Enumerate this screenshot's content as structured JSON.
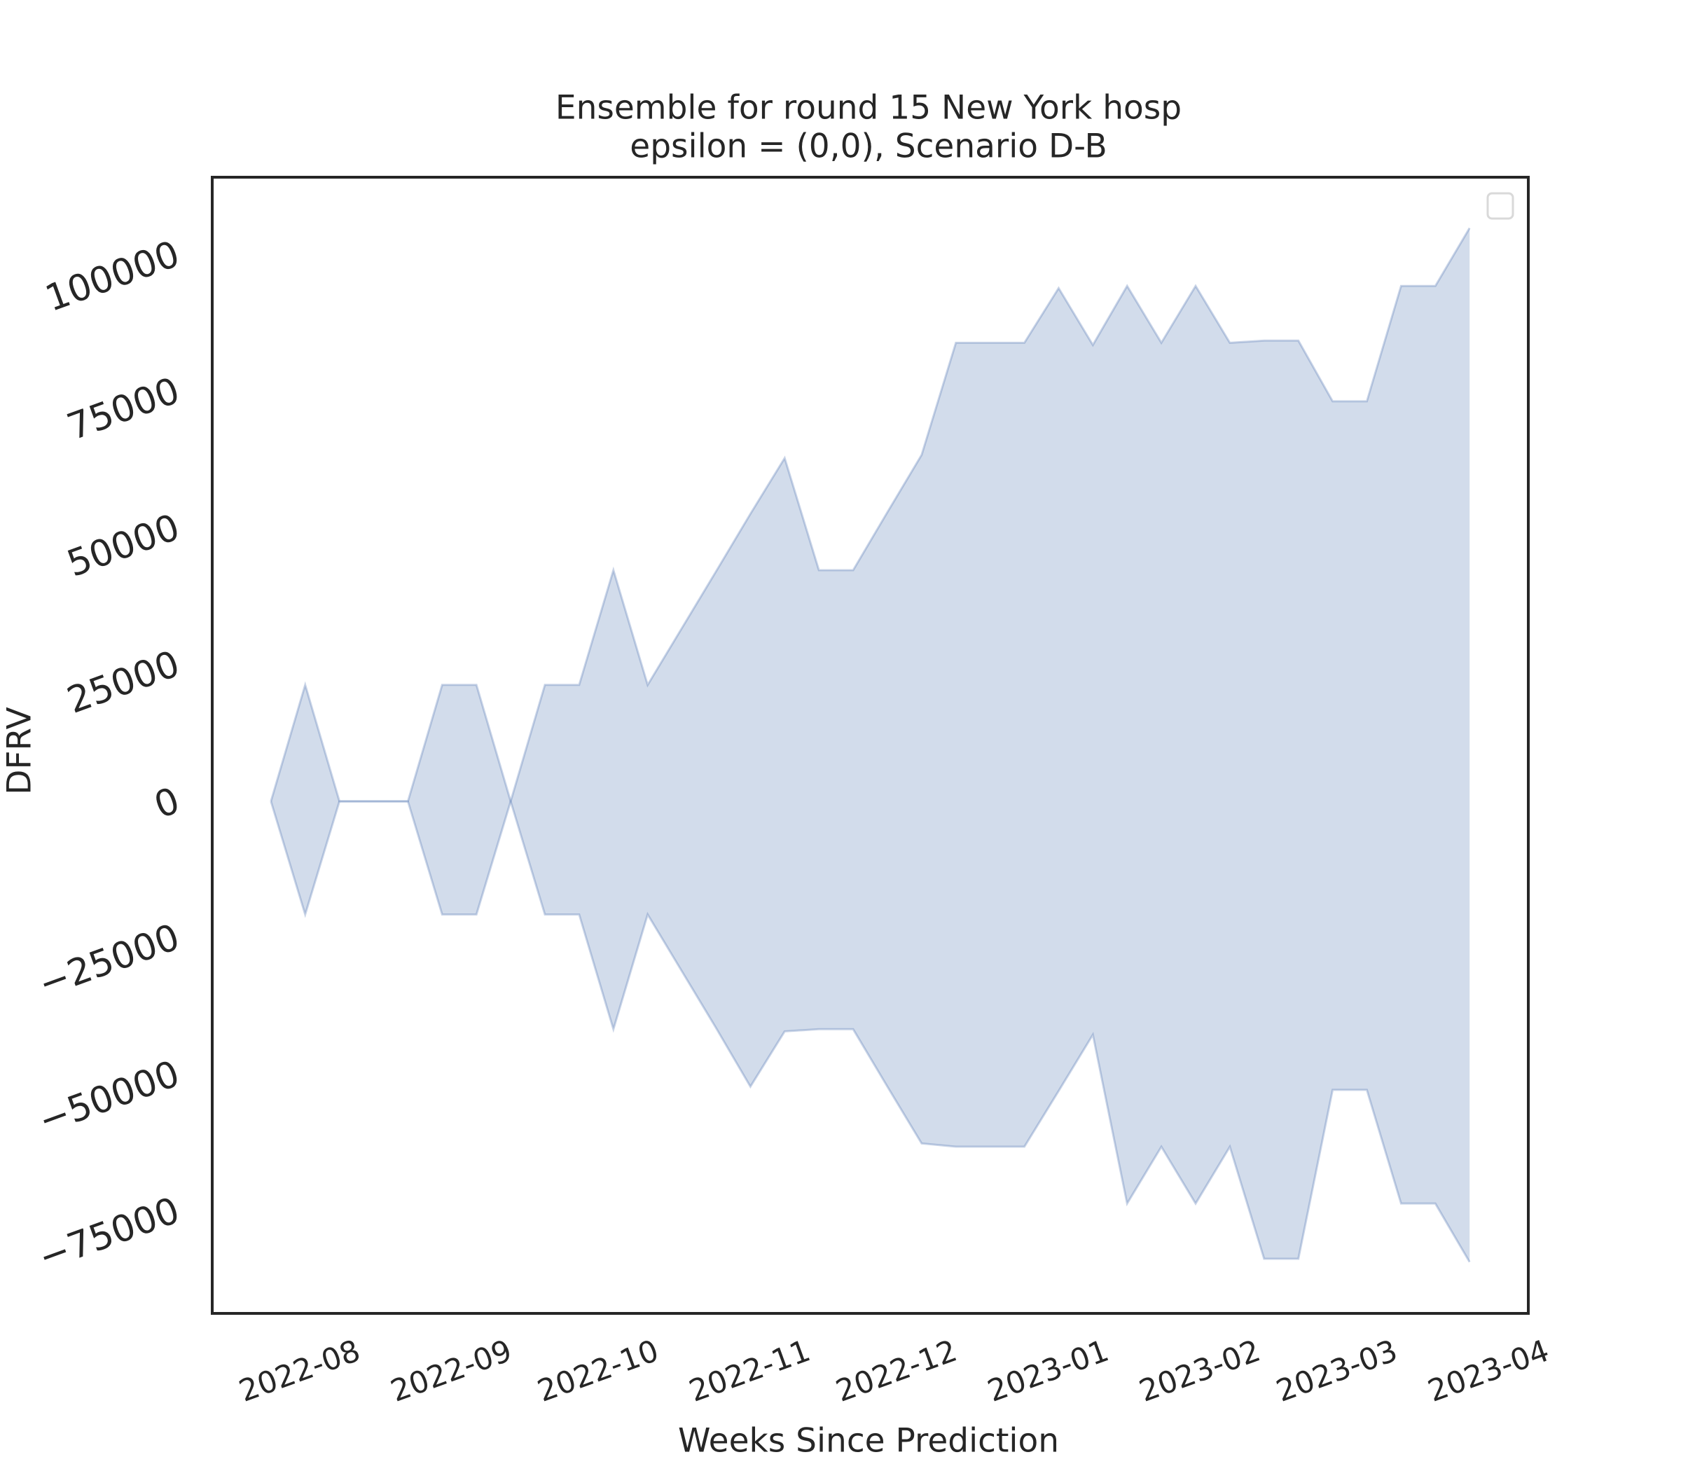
{
  "chart_data": {
    "type": "band",
    "title": [
      "Ensemble for round 15 New York hosp",
      "epsilon = (0,0), Scenario D-B"
    ],
    "xlabel": "Weeks Since Prediction",
    "ylabel": "DFRV",
    "color": "#4c72b0",
    "x": [
      "2022-07-26",
      "2022-08-02",
      "2022-08-09",
      "2022-08-16",
      "2022-08-23",
      "2022-08-30",
      "2022-09-06",
      "2022-09-13",
      "2022-09-20",
      "2022-09-27",
      "2022-10-04",
      "2022-10-11",
      "2022-10-18",
      "2022-10-25",
      "2022-11-01",
      "2022-11-08",
      "2022-11-15",
      "2022-11-22",
      "2022-11-29",
      "2022-12-06",
      "2022-12-13",
      "2022-12-20",
      "2022-12-27",
      "2023-01-03",
      "2023-01-10",
      "2023-01-17",
      "2023-01-24",
      "2023-01-31",
      "2023-02-07",
      "2023-02-14",
      "2023-02-21",
      "2023-02-28",
      "2023-03-07",
      "2023-03-14",
      "2023-03-21",
      "2023-03-28"
    ],
    "upper": [
      0,
      21300,
      0,
      0,
      0,
      21300,
      21300,
      0,
      21300,
      21300,
      42300,
      21300,
      31700,
      42100,
      52600,
      62800,
      42300,
      42300,
      52900,
      63400,
      83900,
      83900,
      83900,
      93900,
      83500,
      94300,
      83900,
      94300,
      83900,
      84300,
      84300,
      73200,
      73200,
      94300,
      94300,
      104900
    ],
    "lower": [
      0,
      -20700,
      0,
      0,
      0,
      -20700,
      -20700,
      0,
      -20700,
      -20700,
      -41700,
      -20700,
      -31100,
      -41500,
      -52200,
      -42100,
      -41700,
      -41700,
      -52200,
      -62600,
      -63200,
      -63200,
      -63200,
      -53000,
      -42700,
      -73600,
      -63200,
      -73600,
      -63200,
      -83700,
      -83700,
      -52800,
      -52800,
      -73600,
      -73600,
      -84300
    ],
    "xlim": [
      "2022-07-14",
      "2023-04-09"
    ],
    "xticks": [
      {
        "value": "2022-08-01",
        "label": "2022-08"
      },
      {
        "value": "2022-09-01",
        "label": "2022-09"
      },
      {
        "value": "2022-10-01",
        "label": "2022-10"
      },
      {
        "value": "2022-11-01",
        "label": "2022-11"
      },
      {
        "value": "2022-12-01",
        "label": "2022-12"
      },
      {
        "value": "2023-01-01",
        "label": "2023-01"
      },
      {
        "value": "2023-02-01",
        "label": "2023-02"
      },
      {
        "value": "2023-03-01",
        "label": "2023-03"
      },
      {
        "value": "2023-04-01",
        "label": "2023-04"
      }
    ],
    "ylim": [
      -93700,
      114200
    ],
    "yticks": [
      {
        "value": -75000,
        "label": "−75000"
      },
      {
        "value": -50000,
        "label": "−50000"
      },
      {
        "value": -25000,
        "label": "−25000"
      },
      0,
      25000,
      50000,
      75000,
      100000
    ]
  }
}
